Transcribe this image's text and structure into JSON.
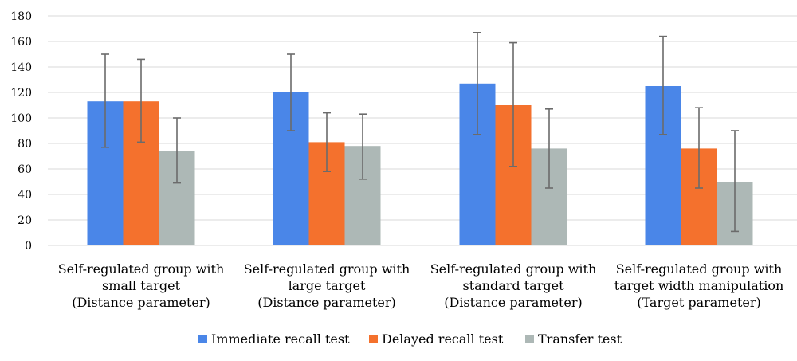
{
  "chart_data": {
    "type": "bar",
    "title": "",
    "xlabel": "",
    "ylabel": "",
    "ylim": [
      0,
      180
    ],
    "yticks": [
      0,
      20,
      40,
      60,
      80,
      100,
      120,
      140,
      160,
      180
    ],
    "grid": true,
    "legend_position": "bottom",
    "categories": [
      [
        "Self-regulated group with",
        "small target",
        "(Distance parameter)"
      ],
      [
        "Self-regulated group with",
        "large target",
        "(Distance parameter)"
      ],
      [
        "Self-regulated group with",
        "standard target",
        "(Distance parameter)"
      ],
      [
        "Self-regulated group with",
        "target width manipulation",
        "(Target parameter)"
      ]
    ],
    "series": [
      {
        "name": "Immediate recall test",
        "color": "#4a86e8",
        "values": [
          113,
          120,
          127,
          125
        ],
        "error_low": [
          77,
          90,
          87,
          87
        ],
        "error_high": [
          150,
          150,
          167,
          164
        ]
      },
      {
        "name": "Delayed recall test",
        "color": "#f4712d",
        "values": [
          113,
          81,
          110,
          76
        ],
        "error_low": [
          81,
          58,
          62,
          45
        ],
        "error_high": [
          146,
          104,
          159,
          108
        ]
      },
      {
        "name": "Transfer test",
        "color": "#adb8b6",
        "values": [
          74,
          78,
          76,
          50
        ],
        "error_low": [
          49,
          52,
          45,
          11
        ],
        "error_high": [
          100,
          103,
          107,
          90
        ]
      }
    ]
  }
}
